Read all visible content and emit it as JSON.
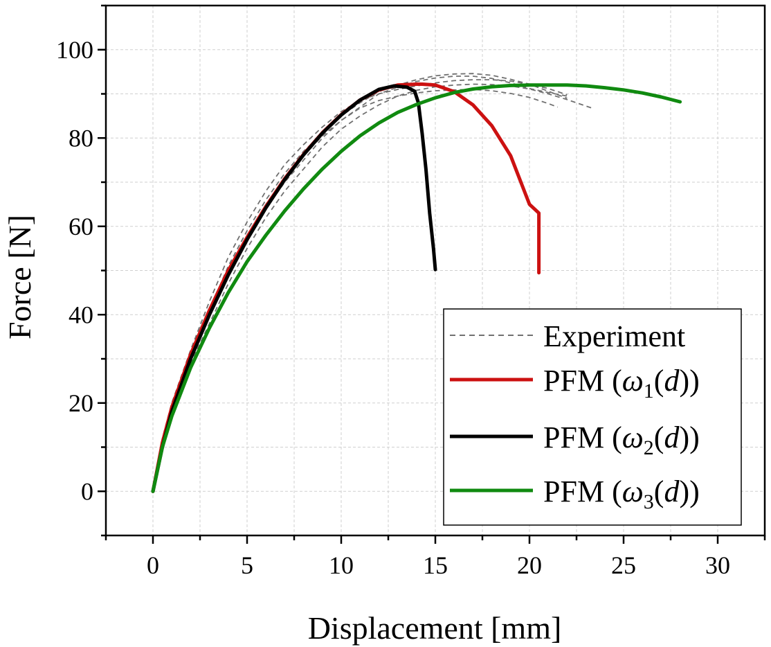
{
  "chart_data": {
    "type": "line",
    "xlabel": "Displacement [mm]",
    "ylabel": "Force [N]",
    "xlim": [
      -2.5,
      32.5
    ],
    "ylim": [
      -10,
      110
    ],
    "xticks": [
      "0",
      "5",
      "10",
      "15",
      "20",
      "25",
      "30"
    ],
    "xtick_values": [
      0,
      5,
      10,
      15,
      20,
      25,
      30
    ],
    "yticks": [
      "0",
      "20",
      "40",
      "60",
      "80",
      "100"
    ],
    "ytick_values": [
      0,
      20,
      40,
      60,
      80,
      100
    ],
    "grid": true,
    "legend_position": "bottom-right",
    "series": [
      {
        "name": "Experiment",
        "color": "#707070",
        "style": "dashed",
        "curves": [
          {
            "x": [
              0,
              0.5,
              1,
              2,
              3,
              4,
              5,
              6,
              7,
              8,
              9,
              10,
              11,
              12,
              13,
              14,
              15,
              16,
              17,
              18,
              19,
              20,
              21,
              22
            ],
            "y": [
              0,
              11,
              19,
              30,
              40,
              49,
              57,
              64,
              70,
              75,
              80,
              84,
              87,
              90,
              91.5,
              92.8,
              93.6,
              94,
              94,
              93.5,
              92.5,
              91.2,
              90.3,
              89.5
            ]
          },
          {
            "x": [
              0,
              0.5,
              1,
              2,
              3,
              4,
              5,
              6,
              7,
              8,
              9,
              10,
              11,
              12,
              13,
              14,
              15,
              16,
              17,
              18,
              19,
              20,
              21,
              22
            ],
            "y": [
              0,
              11,
              20,
              31,
              41,
              51,
              59,
              66,
              72,
              77,
              81,
              85,
              88,
              90.5,
              92,
              93.2,
              94.1,
              94.5,
              94.6,
              94.2,
              93.3,
              92.2,
              90.6,
              89
            ]
          },
          {
            "x": [
              0,
              0.5,
              1,
              2,
              3,
              4,
              5,
              6,
              7,
              8,
              9,
              10,
              11,
              12,
              13,
              14,
              15,
              16,
              17,
              18,
              19,
              20,
              21,
              22,
              23.3
            ],
            "y": [
              0,
              10,
              18,
              29,
              38,
              47,
              55,
              62,
              68,
              73,
              78,
              82,
              85,
              87.5,
              89.5,
              90.8,
              91.6,
              92,
              92.2,
              92.1,
              91.8,
              91.1,
              90,
              88.7,
              86.8
            ]
          },
          {
            "x": [
              0,
              0.5,
              1,
              2,
              3,
              4,
              5,
              6,
              7,
              8,
              9,
              10,
              11,
              12,
              13,
              14,
              15,
              16,
              17,
              18,
              19,
              20,
              21,
              21.5
            ],
            "y": [
              0,
              11,
              19,
              30,
              40,
              50,
              58,
              65,
              71,
              76,
              80.5,
              84,
              86.8,
              88.5,
              89.5,
              90.2,
              90.7,
              90.9,
              91,
              90.7,
              90.1,
              89.2,
              87.8,
              87
            ]
          },
          {
            "x": [
              0,
              0.5,
              1,
              2,
              3,
              4,
              5,
              6,
              7,
              8,
              9,
              10,
              11,
              12,
              13,
              14,
              15,
              16,
              17,
              18,
              19,
              20,
              21,
              22
            ],
            "y": [
              0,
              12,
              20,
              32,
              43,
              53,
              61,
              68,
              74,
              78.5,
              82.5,
              86,
              88.5,
              90,
              91,
              91.8,
              92.5,
              93,
              93.2,
              93.2,
              92.9,
              92.2,
              91.2,
              89.8
            ]
          }
        ]
      },
      {
        "name": "PFM (ω1(d))",
        "color": "#cc1111",
        "style": "solid",
        "x": [
          0,
          0.5,
          1,
          2,
          3,
          4,
          5,
          6,
          7,
          8,
          9,
          10,
          11,
          12,
          13,
          14,
          14.3,
          15,
          16,
          17,
          18,
          19,
          20,
          20.5,
          20.5
        ],
        "y": [
          0,
          11,
          19,
          31,
          41,
          50,
          57.5,
          64.5,
          70.8,
          76.3,
          81.2,
          85.3,
          88.6,
          90.9,
          92,
          92.2,
          92.2,
          92,
          90.5,
          87.5,
          82.8,
          76,
          65,
          63,
          49.5
        ]
      },
      {
        "name": "PFM (ω2(d))",
        "color": "#000000",
        "style": "solid",
        "x": [
          0,
          0.5,
          1,
          2,
          3,
          4,
          5,
          6,
          7,
          8,
          9,
          10,
          11,
          12,
          12.8,
          13.5,
          13.9,
          14.1,
          14.3,
          14.5,
          14.7,
          14.9,
          15.0
        ],
        "y": [
          0,
          10,
          18,
          30,
          40,
          49,
          57,
          64.2,
          70.6,
          76.2,
          81.1,
          85.2,
          88.6,
          91,
          91.8,
          91.5,
          90.6,
          88,
          81,
          73,
          63,
          55,
          50.2
        ]
      },
      {
        "name": "PFM (ω3(d))",
        "color": "#108a10",
        "style": "solid",
        "x": [
          0,
          0.5,
          1,
          2,
          3,
          4,
          5,
          6,
          7,
          8,
          9,
          10,
          11,
          12,
          13,
          14,
          15,
          16,
          17,
          18,
          19,
          20,
          21,
          22,
          23,
          24,
          25,
          26,
          27,
          28
        ],
        "y": [
          0,
          10,
          17,
          28,
          37,
          45,
          52,
          58,
          63.5,
          68.5,
          73,
          77,
          80.5,
          83.4,
          85.8,
          87.6,
          89.1,
          90.3,
          91.1,
          91.6,
          91.9,
          92,
          92,
          92,
          91.8,
          91.4,
          90.9,
          90.2,
          89.3,
          88.2
        ]
      }
    ],
    "legend_labels": [
      {
        "main": "Experiment"
      },
      {
        "pre": "PFM (",
        "sym": "ω",
        "sub": "1",
        "post": "(",
        "var": "d",
        "close": "))"
      },
      {
        "pre": "PFM (",
        "sym": "ω",
        "sub": "2",
        "post": "(",
        "var": "d",
        "close": "))"
      },
      {
        "pre": "PFM (",
        "sym": "ω",
        "sub": "3",
        "post": "(",
        "var": "d",
        "close": "))"
      }
    ]
  }
}
